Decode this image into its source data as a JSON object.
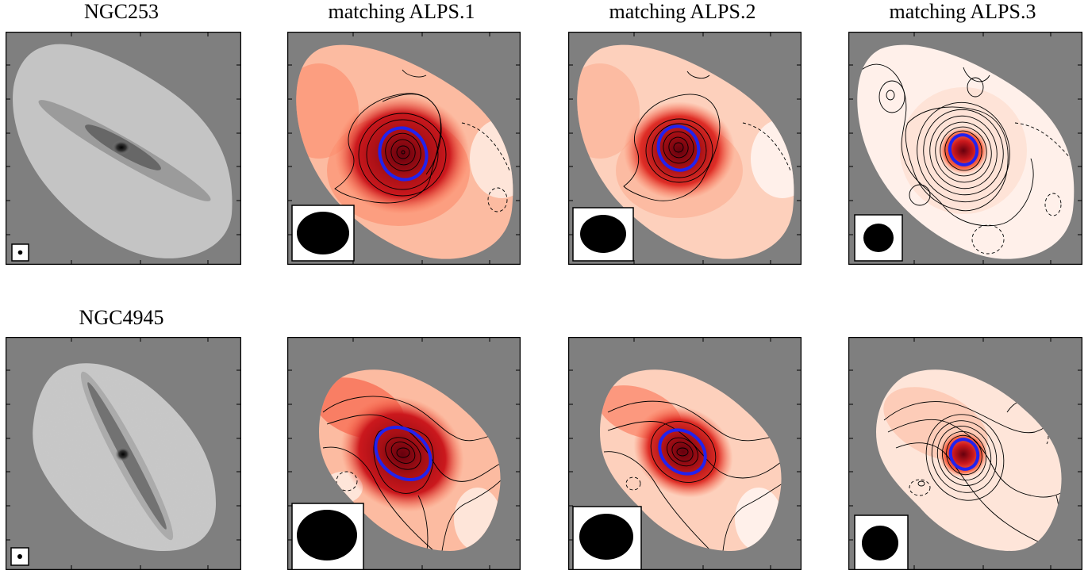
{
  "titles": {
    "row1": [
      "NGC253",
      "matching ALPS.1",
      "matching ALPS.2",
      "matching ALPS.3"
    ],
    "row2": [
      "NGC4945"
    ]
  },
  "colors": {
    "frame_background": "#7f7f7f",
    "contour_line": "#000000",
    "highlight_contour": "#2222ee",
    "beam_fill": "#000000",
    "map_peak": "#67000d",
    "map_low": "#fff0ea"
  },
  "panels": {
    "row1": [
      {
        "kind": "optical",
        "galaxy": "NGC253"
      },
      {
        "kind": "model",
        "match": "ALPS.1",
        "beam_size": "large"
      },
      {
        "kind": "model",
        "match": "ALPS.2",
        "beam_size": "medium"
      },
      {
        "kind": "model",
        "match": "ALPS.3",
        "beam_size": "small"
      }
    ],
    "row2": [
      {
        "kind": "optical",
        "galaxy": "NGC4945"
      },
      {
        "kind": "model",
        "match": "ALPS.1",
        "beam_size": "large"
      },
      {
        "kind": "model",
        "match": "ALPS.2",
        "beam_size": "medium"
      },
      {
        "kind": "model",
        "match": "ALPS.3",
        "beam_size": "small"
      }
    ]
  }
}
